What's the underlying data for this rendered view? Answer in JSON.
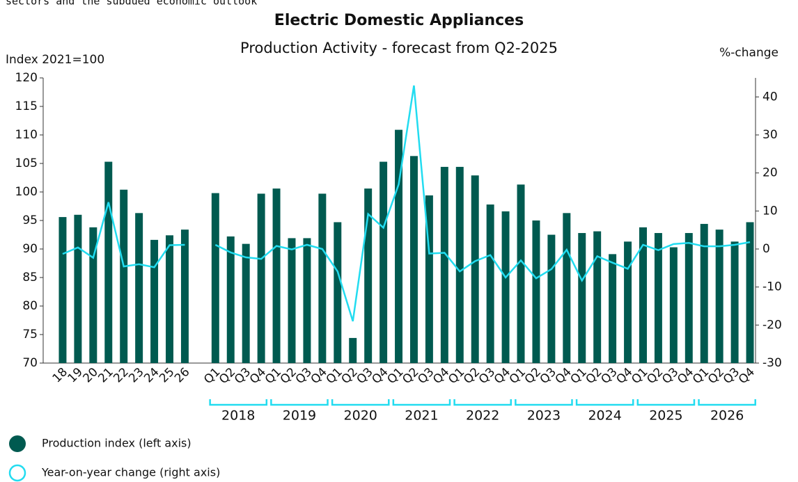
{
  "chart_data": {
    "type": "bar-line",
    "header_fragment": "sectors and the subdued economic outlook",
    "title": "Electric Domestic Appliances",
    "subtitle": "Production Activity - forecast from Q2-2025",
    "y_label": "Index 2021=100",
    "y2_label": "%-change",
    "categories": [
      "18",
      "19",
      "20",
      "21",
      "22",
      "23",
      "24",
      "25",
      "26",
      null,
      "Q1",
      "Q2",
      "Q3",
      "Q4",
      "Q1",
      "Q2",
      "Q3",
      "Q4",
      "Q1",
      "Q2",
      "Q3",
      "Q4",
      "Q1",
      "Q2",
      "Q3",
      "Q4",
      "Q1",
      "Q2",
      "Q3",
      "Q4",
      "Q1",
      "Q2",
      "Q3",
      "Q4",
      "Q1",
      "Q2",
      "Q3",
      "Q4",
      "Q1",
      "Q2",
      "Q3",
      "Q4",
      "Q1",
      "Q2",
      "Q3",
      "Q4"
    ],
    "groups": [
      "2018",
      "2019",
      "2020",
      "2021",
      "2022",
      "2023",
      "2024",
      "2025",
      "2026"
    ],
    "series": [
      {
        "name": "Production index (left axis)",
        "type": "bar",
        "color": "#005a50",
        "values": [
          95.6,
          96.0,
          93.8,
          105.3,
          100.4,
          96.3,
          91.6,
          92.4,
          93.4,
          null,
          99.8,
          92.2,
          90.9,
          99.7,
          100.6,
          91.9,
          91.9,
          99.7,
          94.7,
          74.4,
          100.6,
          105.3,
          110.9,
          106.3,
          99.4,
          104.4,
          104.4,
          102.9,
          97.8,
          96.6,
          101.3,
          95.0,
          92.5,
          96.3,
          92.8,
          93.1,
          89.1,
          91.3,
          93.8,
          92.8,
          90.3,
          92.8,
          94.4,
          93.4,
          91.3,
          94.7
        ]
      },
      {
        "name": "Year-on-year change (right axis)",
        "type": "line",
        "axis": "y2",
        "color": "#22dcf0",
        "values": [
          -1.3,
          0.4,
          -2.3,
          12.3,
          -4.6,
          -4.0,
          -4.8,
          1.0,
          1.1,
          null,
          1.1,
          -0.9,
          -2.2,
          -2.6,
          0.8,
          -0.1,
          1.1,
          0.0,
          -5.9,
          -19.0,
          9.2,
          5.6,
          17.0,
          43.0,
          -1.2,
          -1.0,
          -5.9,
          -3.2,
          -1.6,
          -7.5,
          -3.0,
          -7.7,
          -5.3,
          -0.2,
          -8.3,
          -1.9,
          -3.6,
          -5.2,
          1.1,
          -0.3,
          1.3,
          1.6,
          0.7,
          0.7,
          1.1,
          1.8
        ]
      }
    ],
    "ylim": [
      70,
      120
    ],
    "yticks": [
      70,
      75,
      80,
      85,
      90,
      95,
      100,
      105,
      110,
      115,
      120
    ],
    "y2lim": [
      -30,
      45
    ],
    "y2ticks": [
      -30,
      -20,
      -10,
      0,
      10,
      20,
      30,
      40
    ]
  }
}
